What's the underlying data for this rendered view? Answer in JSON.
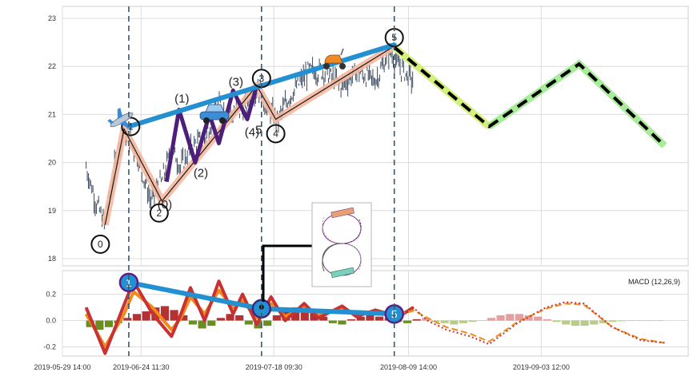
{
  "chart_data": [
    {
      "type": "line",
      "panel": "price",
      "ylim": [
        17.85,
        23.25
      ],
      "yticks": [
        18,
        19,
        20,
        21,
        22,
        23
      ],
      "grid": true,
      "vlines_x": [
        7.0,
        21.0,
        35.0
      ],
      "price_anchors": [
        [
          2.5,
          19.9
        ],
        [
          3.5,
          19.2
        ],
        [
          4.5,
          18.7
        ],
        [
          5.5,
          19.9
        ],
        [
          6.5,
          20.7
        ],
        [
          8.0,
          20.1
        ],
        [
          9.3,
          19.2
        ],
        [
          10.5,
          19.6
        ],
        [
          11.5,
          20.3
        ],
        [
          12.5,
          19.9
        ],
        [
          13.5,
          20.3
        ],
        [
          15.0,
          20.5
        ],
        [
          16.5,
          21.2
        ],
        [
          18.0,
          21.0
        ],
        [
          19.5,
          21.2
        ],
        [
          20.6,
          21.6
        ],
        [
          21.6,
          21.1
        ],
        [
          22.8,
          20.9
        ],
        [
          24.0,
          21.4
        ],
        [
          26.0,
          21.9
        ],
        [
          27.5,
          21.9
        ],
        [
          29.5,
          21.6
        ],
        [
          31.0,
          21.9
        ],
        [
          33.0,
          21.7
        ],
        [
          34.5,
          22.3
        ],
        [
          35.5,
          22.0
        ],
        [
          36.5,
          21.8
        ],
        [
          37.0,
          21.7
        ]
      ],
      "zigzag": [
        [
          4.5,
          18.7
        ],
        [
          6.5,
          20.7
        ],
        [
          10.5,
          19.2
        ],
        [
          20.5,
          21.6
        ],
        [
          22.5,
          20.9
        ],
        [
          34.8,
          22.4
        ]
      ],
      "wave_labels": [
        {
          "text": "(1)",
          "x": 12.6,
          "y": 21.25
        },
        {
          "text": "(2)",
          "x": 14.6,
          "y": 19.7
        },
        {
          "text": "(3)",
          "x": 18.3,
          "y": 21.6
        },
        {
          "text": "(4)",
          "x": 20.0,
          "y": 20.55
        },
        {
          "text": "5",
          "x": 20.7,
          "y": 20.6
        },
        {
          "text": "(0)",
          "x": 10.8,
          "y": 19.05
        }
      ],
      "circled_labels": [
        {
          "text": "0",
          "x": 4.0,
          "y": 18.3
        },
        {
          "text": "1",
          "x": 7.2,
          "y": 20.75
        },
        {
          "text": "2",
          "x": 10.2,
          "y": 18.95
        },
        {
          "text": "3",
          "x": 21.0,
          "y": 21.75
        },
        {
          "text": "4",
          "x": 22.5,
          "y": 20.6
        },
        {
          "text": "5",
          "x": 35.0,
          "y": 22.6
        }
      ],
      "purple_wave": [
        [
          11.0,
          19.6
        ],
        [
          12.3,
          21.1
        ],
        [
          14.0,
          20.0
        ],
        [
          15.5,
          21.0
        ],
        [
          16.5,
          20.4
        ],
        [
          18.0,
          21.5
        ],
        [
          19.5,
          20.9
        ],
        [
          20.5,
          21.6
        ]
      ],
      "blue_trend": [
        [
          7.0,
          20.75
        ],
        [
          35.0,
          22.45
        ]
      ],
      "projection": [
        [
          35.0,
          22.4
        ],
        [
          45.0,
          20.75
        ],
        [
          54.5,
          22.05
        ],
        [
          63.5,
          20.35
        ]
      ]
    },
    {
      "type": "bar",
      "panel": "macd",
      "title": "MACD (12,26,9)",
      "ylim": [
        -0.27,
        0.38
      ],
      "yticks": [
        -0.2,
        0.0,
        0.2
      ],
      "xlim": [
        0,
        66
      ],
      "x_ticks": [
        {
          "x": 0,
          "label": "2019-05-29 14:00"
        },
        {
          "x": 8.3,
          "label": "2019-06-24 11:30"
        },
        {
          "x": 22.3,
          "label": "2019-07-18 09:30"
        },
        {
          "x": 36.5,
          "label": "2019-08-09 14:00"
        },
        {
          "x": 50.5,
          "label": "2019-09-03 12:00"
        }
      ],
      "histogram": [
        -0.05,
        -0.07,
        -0.05,
        -0.02,
        0.02,
        0.05,
        0.07,
        0.1,
        0.11,
        0.08,
        0.04,
        -0.03,
        -0.06,
        -0.04,
        0.02,
        0.05,
        0.04,
        -0.03,
        -0.06,
        -0.04,
        0.04,
        0.08,
        0.1,
        0.08,
        0.06,
        0.03,
        -0.02,
        -0.03,
        0.01,
        0.03,
        0.04,
        0.03,
        0.02,
        -0.01,
        -0.02,
        0.01,
        0.02,
        -0.01,
        -0.02,
        -0.03,
        -0.02,
        -0.01,
        0.0,
        0.02,
        0.04,
        0.05,
        0.05,
        0.04,
        0.03,
        0.01,
        -0.01,
        -0.03,
        -0.04,
        -0.04,
        -0.03,
        -0.02,
        -0.01,
        -0.005,
        0.0,
        0.0,
        0.0,
        0.0
      ],
      "macd_line": [
        [
          2.5,
          0.1
        ],
        [
          4.5,
          -0.25
        ],
        [
          6.5,
          0.12
        ],
        [
          7.5,
          0.3
        ],
        [
          9.5,
          0.05
        ],
        [
          11.5,
          -0.12
        ],
        [
          12.5,
          0.05
        ],
        [
          13.5,
          0.25
        ],
        [
          15.0,
          0.0
        ],
        [
          16.5,
          0.3
        ],
        [
          18.0,
          0.05
        ],
        [
          19.0,
          0.2
        ],
        [
          20.5,
          -0.03
        ],
        [
          22.0,
          0.18
        ],
        [
          23.5,
          0.0
        ],
        [
          25.5,
          0.13
        ],
        [
          27.0,
          0.02
        ],
        [
          29.5,
          0.11
        ],
        [
          31.0,
          0.03
        ],
        [
          33.0,
          0.08
        ],
        [
          35.5,
          0.03
        ],
        [
          37.0,
          0.1
        ],
        [
          38.5,
          0.0
        ],
        [
          40.5,
          -0.07
        ],
        [
          43.0,
          -0.12
        ],
        [
          45.0,
          -0.18
        ],
        [
          48.0,
          -0.02
        ],
        [
          51.0,
          0.1
        ],
        [
          53.0,
          0.14
        ],
        [
          55.0,
          0.13
        ],
        [
          58.0,
          -0.05
        ],
        [
          61.0,
          -0.15
        ],
        [
          63.5,
          -0.17
        ]
      ],
      "signal_line": [
        [
          2.5,
          0.05
        ],
        [
          4.5,
          -0.2
        ],
        [
          6.5,
          0.05
        ],
        [
          7.5,
          0.22
        ],
        [
          9.5,
          0.1
        ],
        [
          11.5,
          -0.07
        ],
        [
          12.5,
          0.02
        ],
        [
          13.5,
          0.18
        ],
        [
          15.0,
          0.05
        ],
        [
          16.5,
          0.23
        ],
        [
          18.0,
          0.1
        ],
        [
          19.0,
          0.15
        ],
        [
          20.5,
          0.02
        ],
        [
          22.0,
          0.13
        ],
        [
          23.5,
          0.03
        ],
        [
          25.5,
          0.1
        ],
        [
          27.0,
          0.04
        ],
        [
          29.5,
          0.09
        ],
        [
          31.0,
          0.05
        ],
        [
          33.0,
          0.07
        ],
        [
          35.5,
          0.05
        ],
        [
          37.0,
          0.08
        ],
        [
          38.5,
          0.02
        ],
        [
          40.5,
          -0.05
        ],
        [
          43.0,
          -0.1
        ],
        [
          45.0,
          -0.16
        ],
        [
          48.0,
          -0.01
        ],
        [
          51.0,
          0.09
        ],
        [
          53.0,
          0.13
        ],
        [
          55.0,
          0.12
        ],
        [
          58.0,
          -0.05
        ],
        [
          61.0,
          -0.14
        ],
        [
          63.5,
          -0.17
        ]
      ],
      "blue_trend": [
        [
          7.0,
          0.29
        ],
        [
          21.0,
          0.09
        ],
        [
          35.0,
          0.05
        ]
      ],
      "circled_labels": [
        {
          "text": "1",
          "x": 7.0,
          "y": 0.29
        },
        {
          "text": "5",
          "x": 35.0,
          "y": 0.05
        }
      ]
    }
  ]
}
